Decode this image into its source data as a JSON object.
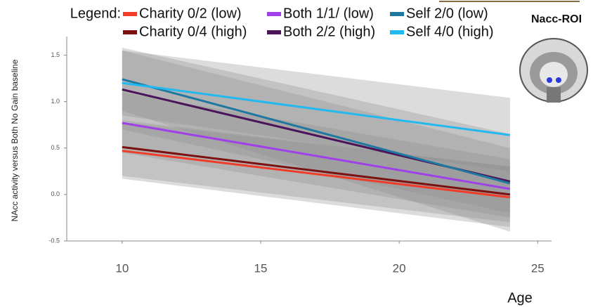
{
  "chart_data": {
    "type": "line",
    "legend_title": "Legend:",
    "side_label": "Nacc-ROI",
    "x_label": "Age",
    "y_label": "NAcc activity versus Both No Gain baseline",
    "x": [
      10,
      24
    ],
    "xlim": [
      8,
      25.5
    ],
    "xticks": [
      10,
      15,
      20,
      25
    ],
    "ylim": [
      -0.5,
      1.7
    ],
    "yticks": [
      {
        "value": -0.5,
        "label": "-0.5"
      },
      {
        "value": 0,
        "label": "0.0"
      },
      0.5,
      {
        "value": 1,
        "label": "1.0"
      },
      1.5
    ],
    "series": [
      {
        "name": "Charity 0/2 (low)",
        "color": "#f03c28",
        "values": [
          0.47,
          -0.03
        ],
        "lower": [
          0.17,
          -0.35
        ],
        "upper": [
          0.78,
          0.3
        ]
      },
      {
        "name": "Charity 0/4 (high)",
        "color": "#7a1010",
        "values": [
          0.51,
          0.0
        ],
        "lower": [
          0.2,
          -0.3
        ],
        "upper": [
          0.8,
          0.3
        ]
      },
      {
        "name": "Both 1/1/ (low)",
        "color": "#a040e8",
        "values": [
          0.77,
          0.06
        ],
        "lower": [
          0.45,
          -0.25
        ],
        "upper": [
          1.1,
          0.38
        ]
      },
      {
        "name": "Both 2/2 (high)",
        "color": "#4b145a",
        "values": [
          1.13,
          0.14
        ],
        "lower": [
          0.7,
          -0.2
        ],
        "upper": [
          1.55,
          0.5
        ]
      },
      {
        "name": "Self 2/0 (low)",
        "color": "#1f78a0",
        "values": [
          1.24,
          0.12
        ],
        "lower": [
          0.9,
          -0.4
        ],
        "upper": [
          1.58,
          0.65
        ]
      },
      {
        "name": "Self 4/0 (high)",
        "color": "#22b8f0",
        "values": [
          1.2,
          0.64
        ],
        "lower": [
          0.85,
          0.25
        ],
        "upper": [
          1.55,
          1.04
        ]
      }
    ]
  }
}
